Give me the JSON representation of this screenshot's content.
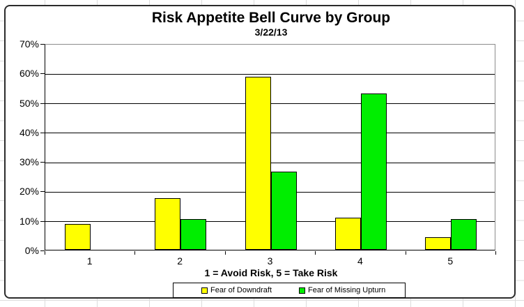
{
  "chart_data": {
    "type": "bar",
    "title": "Risk Appetite Bell Curve by Group",
    "subtitle": "3/22/13",
    "xlabel": "1 = Avoid Risk, 5 = Take Risk",
    "ylabel": "",
    "categories": [
      "1",
      "2",
      "3",
      "4",
      "5"
    ],
    "series": [
      {
        "name": "Fear of Downdraft",
        "color": "#FFFF00",
        "values": [
          8.7,
          17.4,
          58.7,
          10.9,
          4.3
        ]
      },
      {
        "name": "Fear of Missing Upturn",
        "color": "#00EE00",
        "values": [
          0,
          10.3,
          26.5,
          52.9,
          10.3
        ]
      }
    ],
    "ylim": [
      0,
      70
    ],
    "ytick_step": 10,
    "ytick_labels": [
      "0%",
      "10%",
      "20%",
      "30%",
      "40%",
      "50%",
      "60%",
      "70%"
    ],
    "grid": true,
    "legend_position": "bottom",
    "colors": {
      "plot_border": "#8c8c8c",
      "axis": "#000000",
      "gridline": "#000000"
    }
  }
}
